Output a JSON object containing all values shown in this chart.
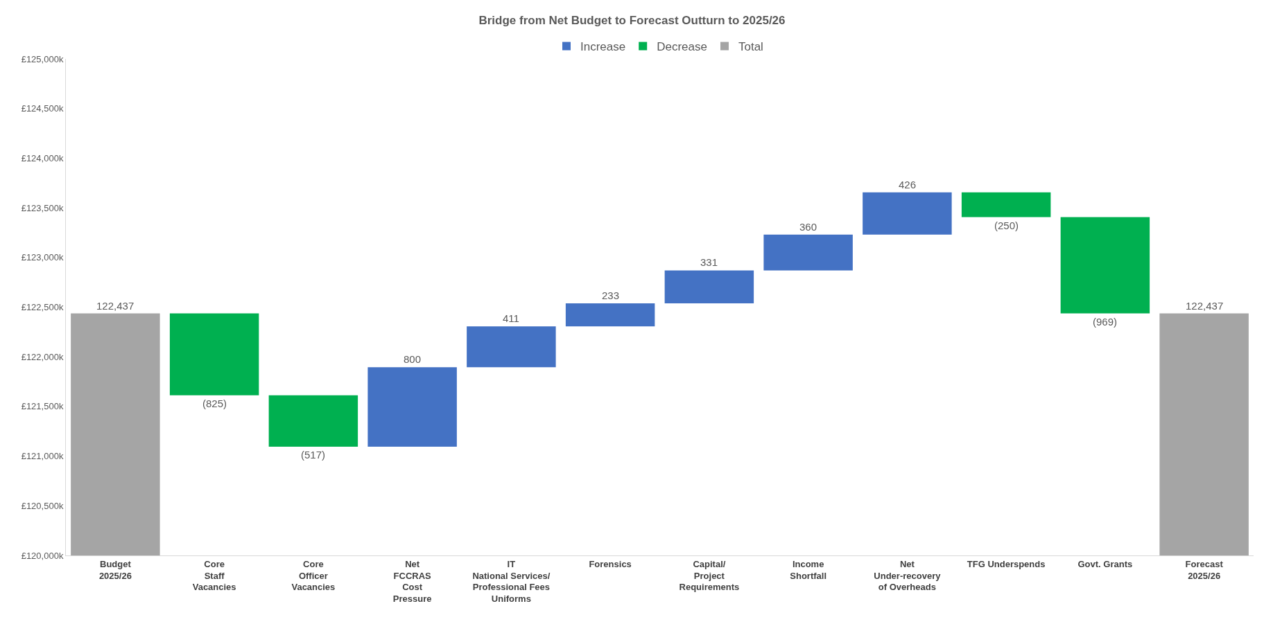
{
  "chart_data": {
    "type": "bar",
    "title": "Bridge from Net Budget to Forecast Outturn to 2025/26",
    "categories": [
      "Budget\n2025/26",
      "Core\nStaff\nVacancies",
      "Core\nOfficer\nVacancies",
      "Net\nFCCRAS\nCost\nPressure",
      "IT\nNational Services/\nProfessional Fees\nUniforms",
      "Forensics",
      "Capital/\nProject\nRequirements",
      "Income\nShortfall",
      "Net\nUnder-recovery\nof Overheads",
      "TFG Underspends",
      "Govt. Grants",
      "Forecast\n2025/26"
    ],
    "series": [
      {
        "name": "Increase",
        "color": "#4472c4",
        "values": [
          null,
          null,
          null,
          800,
          411,
          233,
          331,
          360,
          426,
          null,
          null,
          null
        ],
        "base": [
          null,
          null,
          null,
          121095,
          121895,
          122306,
          122539,
          122870,
          123230,
          null,
          null,
          null
        ],
        "value_labels": [
          null,
          null,
          null,
          "800",
          "411",
          "233",
          "331",
          "360",
          "426",
          null,
          null,
          null
        ]
      },
      {
        "name": "Decrease",
        "color": "#00b050",
        "values": [
          null,
          -825,
          -517,
          null,
          null,
          null,
          null,
          null,
          null,
          -250,
          -969,
          null
        ],
        "base": [
          null,
          122437,
          121612,
          null,
          null,
          null,
          null,
          null,
          null,
          123656,
          123406,
          null
        ],
        "value_labels": [
          null,
          "(825)",
          "(517)",
          null,
          null,
          null,
          null,
          null,
          null,
          "(250)",
          "(969)",
          null
        ]
      },
      {
        "name": "Total",
        "color": "#a5a5a5",
        "values": [
          122437,
          null,
          null,
          null,
          null,
          null,
          null,
          null,
          null,
          null,
          null,
          122437
        ],
        "value_labels": [
          "122,437",
          null,
          null,
          null,
          null,
          null,
          null,
          null,
          null,
          null,
          null,
          "122,437"
        ]
      }
    ],
    "ylim": [
      120000,
      125000
    ],
    "yticks": [
      {
        "value": 120000,
        "label": "£120,000k"
      },
      {
        "value": 120500,
        "label": "£120,500k"
      },
      {
        "value": 121000,
        "label": "£121,000k"
      },
      {
        "value": 121500,
        "label": "£121,500k"
      },
      {
        "value": 122000,
        "label": "£122,000k"
      },
      {
        "value": 122500,
        "label": "£122,500k"
      },
      {
        "value": 123000,
        "label": "£123,000k"
      },
      {
        "value": 123500,
        "label": "£123,500k"
      },
      {
        "value": 124000,
        "label": "£124,000k"
      },
      {
        "value": 124500,
        "label": "£124,500k"
      },
      {
        "value": 125000,
        "label": "£125,000k"
      }
    ],
    "grid": false,
    "legend": "top"
  }
}
